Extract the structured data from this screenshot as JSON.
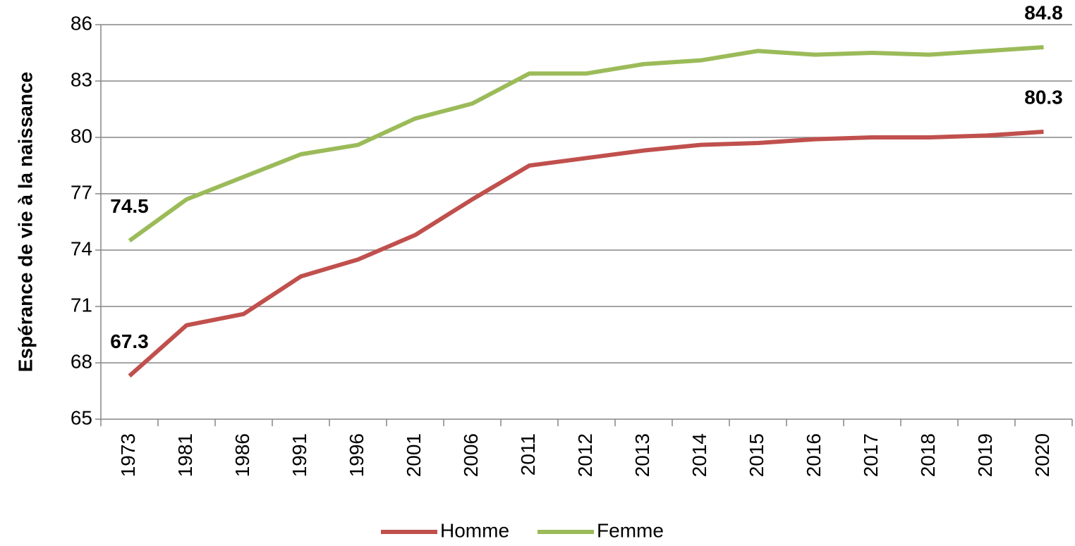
{
  "chart_data": {
    "type": "line",
    "y_label": "Espérance de vie à la naissance",
    "categories": [
      "1973",
      "1981",
      "1986",
      "1991",
      "1996",
      "2001",
      "2006",
      "2011",
      "2012",
      "2013",
      "2014",
      "2015",
      "2016",
      "2017",
      "2018",
      "2019",
      "2020"
    ],
    "series": [
      {
        "name": "Homme",
        "color": "#c0504d",
        "values": [
          67.3,
          70.0,
          70.6,
          72.6,
          73.5,
          74.8,
          76.7,
          78.5,
          78.9,
          79.3,
          79.6,
          79.7,
          79.9,
          80.0,
          80.0,
          80.1,
          80.3
        ],
        "value_labels": [
          "67.3",
          null,
          null,
          null,
          null,
          null,
          null,
          null,
          null,
          null,
          null,
          null,
          null,
          null,
          null,
          null,
          "80.3"
        ]
      },
      {
        "name": "Femme",
        "color": "#9bbb59",
        "values": [
          74.5,
          76.7,
          77.9,
          79.1,
          79.6,
          81.0,
          81.8,
          83.4,
          83.4,
          83.9,
          84.1,
          84.6,
          84.4,
          84.5,
          84.4,
          84.6,
          84.8
        ],
        "value_labels": [
          "74.5",
          null,
          null,
          null,
          null,
          null,
          null,
          null,
          null,
          null,
          null,
          null,
          null,
          null,
          null,
          null,
          "84.8"
        ]
      }
    ],
    "ylim": [
      65,
      86
    ],
    "yticks": [
      65,
      68,
      71,
      74,
      77,
      80,
      83,
      86
    ],
    "grid": true,
    "legend": "bottom"
  }
}
